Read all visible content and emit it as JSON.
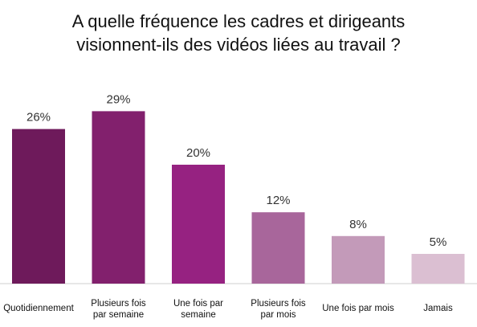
{
  "title": {
    "line1": "A quelle fréquence les cadres et dirigeants",
    "line2": "visionnent-ils des vidéos liées au travail ?"
  },
  "chart_data": {
    "type": "bar",
    "categories": [
      [
        "Quotidiennement"
      ],
      [
        "Plusieurs fois",
        "par semaine"
      ],
      [
        "Une fois par",
        "semaine"
      ],
      [
        "Plusieurs fois",
        "par mois"
      ],
      [
        "Une fois par mois"
      ],
      [
        "Jamais"
      ]
    ],
    "values": [
      26,
      29,
      20,
      12,
      8,
      5
    ],
    "value_labels": [
      "26%",
      "29%",
      "20%",
      "12%",
      "8%",
      "5%"
    ],
    "colors": [
      "#6e1a5b",
      "#82206d",
      "#962281",
      "#a8669b",
      "#c39ab9",
      "#dbbfd2"
    ],
    "ylim": [
      0,
      30
    ],
    "grid": false,
    "legend": "none"
  }
}
